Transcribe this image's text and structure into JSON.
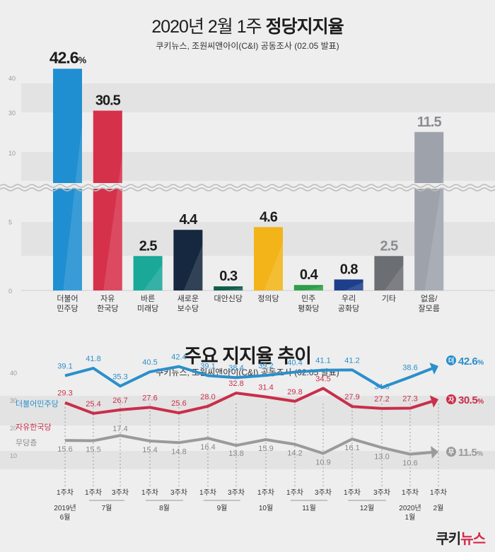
{
  "header": {
    "title_regular": "2020년 2월 1주",
    "title_bold": "정당지지율",
    "source": "쿠키뉴스, 조원씨앤아이(C&I) 공동조사 (02.05 발표)"
  },
  "trend_header": {
    "title": "주요 지지율 추이",
    "source": "쿠키뉴스, 조원씨앤아이(C&I) 공동조사 (02.05 발표)"
  },
  "brand": {
    "part1": "쿠키",
    "part2": "뉴스"
  },
  "chart_data": [
    {
      "type": "bar",
      "title": "2020년 2월 1주 정당지지율",
      "categories": [
        "더불어\n민주당",
        "자유\n한국당",
        "바른\n미래당",
        "새로운\n보수당",
        "대안신당",
        "정의당",
        "민주\n평화당",
        "우리\n공화당",
        "기타",
        "없음/\n잘모름"
      ],
      "values": [
        42.6,
        30.5,
        2.5,
        4.4,
        0.3,
        4.6,
        0.4,
        0.8,
        2.5,
        11.5
      ],
      "value_labels": [
        "42.6",
        "30.5",
        "2.5",
        "4.4",
        "0.3",
        "4.6",
        "0.4",
        "0.8",
        "2.5",
        "11.5"
      ],
      "first_label_unit": "%",
      "colors": [
        "#1f8fd1",
        "#d6314b",
        "#1aa899",
        "#16283f",
        "#0f5c4a",
        "#f2b418",
        "#2e9e48",
        "#1e3f8c",
        "#6b6e73",
        "#9ea2ab"
      ],
      "yticks_lower": [
        0,
        5,
        10
      ],
      "yticks_upper": [
        30,
        40
      ],
      "axis_break": true,
      "grid": true
    },
    {
      "type": "line",
      "title": "주요 지지율 추이",
      "x_labels": [
        {
          "week": "1주차",
          "month": "2019년\n6월"
        },
        {
          "week": "1주차",
          "month": ""
        },
        {
          "week": "3주차",
          "month": "7월"
        },
        {
          "week": "1주차",
          "month": ""
        },
        {
          "week": "3주차",
          "month": "8월"
        },
        {
          "week": "1주차",
          "month": ""
        },
        {
          "week": "3주차",
          "month": "9월"
        },
        {
          "week": "1주차",
          "month": "10월"
        },
        {
          "week": "1주차",
          "month": ""
        },
        {
          "week": "3주차",
          "month": "11월"
        },
        {
          "week": "1주차",
          "month": "12월"
        },
        {
          "week": "3주차",
          "month": ""
        },
        {
          "week": "1주차",
          "month": "2020년\n1월"
        },
        {
          "week": "1주차",
          "month": "2월"
        }
      ],
      "month_groups": [
        {
          "label": "2019년\n6월",
          "from": 0,
          "to": 0
        },
        {
          "label": "7월",
          "from": 1,
          "to": 2
        },
        {
          "label": "8월",
          "from": 3,
          "to": 4
        },
        {
          "label": "9월",
          "from": 5,
          "to": 6
        },
        {
          "label": "10월",
          "from": 7,
          "to": 7
        },
        {
          "label": "11월",
          "from": 8,
          "to": 9
        },
        {
          "label": "12월",
          "from": 10,
          "to": 11
        },
        {
          "label": "2020년\n1월",
          "from": 12,
          "to": 12
        },
        {
          "label": "2월",
          "from": 13,
          "to": 13
        }
      ],
      "yticks": [
        10,
        20,
        30,
        40
      ],
      "series": [
        {
          "name": "더불어민주당",
          "color": "#2a8fcc",
          "values": [
            39.1,
            41.8,
            35.3,
            40.5,
            42.4,
            39.1,
            38.4,
            39.2,
            40.4,
            41.1,
            41.2,
            34.8,
            38.6,
            42.6
          ],
          "labels": [
            "39.1",
            "41.8",
            "35.3",
            "40.5",
            "42.4",
            "39.1",
            "38.4",
            "39.2",
            "40.4",
            "41.1",
            "41.2",
            "34.8",
            "38.6",
            "42.6%"
          ],
          "badge": "더"
        },
        {
          "name": "자유한국당",
          "color": "#c92e4a",
          "values": [
            29.3,
            25.4,
            26.7,
            27.6,
            25.6,
            28.0,
            32.8,
            31.4,
            29.8,
            34.5,
            27.9,
            27.2,
            27.3,
            30.5
          ],
          "labels": [
            "29.3",
            "25.4",
            "26.7",
            "27.6",
            "25.6",
            "28.0",
            "32.8",
            "31.4",
            "29.8",
            "34.5",
            "27.9",
            "27.2",
            "27.3",
            "30.5%"
          ],
          "badge": "자"
        },
        {
          "name": "무당층",
          "color": "#9a9a9a",
          "values": [
            15.6,
            15.5,
            17.4,
            15.4,
            14.8,
            16.4,
            13.8,
            15.9,
            14.2,
            10.9,
            16.1,
            13.0,
            10.6,
            11.5
          ],
          "labels": [
            "15.6",
            "15.5",
            "17.4",
            "15.4",
            "14.8",
            "16.4",
            "13.8",
            "15.9",
            "14.2",
            "10.9",
            "16.1",
            "13.0",
            "10.6",
            "11.5%"
          ],
          "badge": "무"
        }
      ]
    }
  ]
}
